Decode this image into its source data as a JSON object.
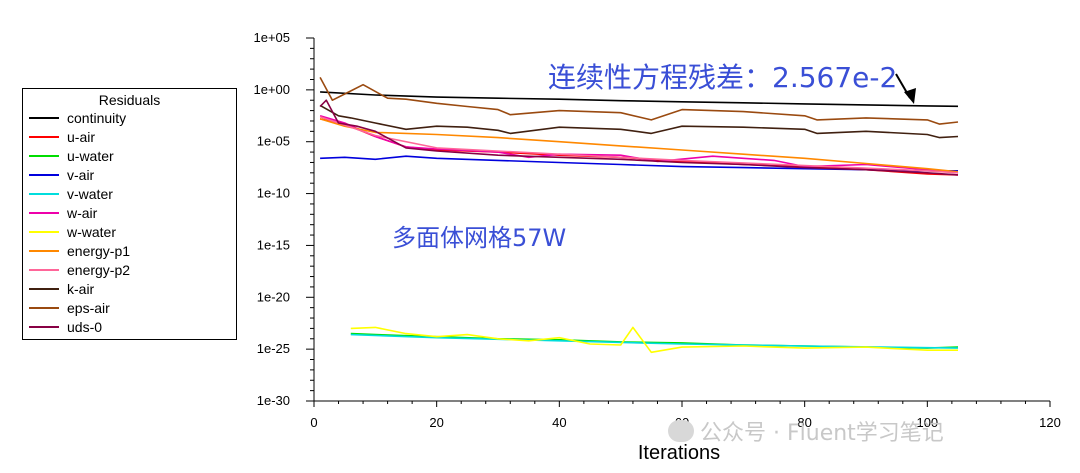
{
  "chart_data": {
    "type": "line",
    "title": "",
    "xlabel": "Iterations",
    "ylabel": "",
    "xlim": [
      0,
      120
    ],
    "xticks": [
      "0",
      "20",
      "40",
      "60",
      "80",
      "100",
      "120"
    ],
    "y_scale": "log",
    "ylim_exp": [
      -30,
      5
    ],
    "yticks": [
      "1e+05",
      "1e+00",
      "1e-05",
      "1e-10",
      "1e-15",
      "1e-20",
      "1e-25",
      "1e-30"
    ],
    "legend_title": "Residuals",
    "legend_position": "left",
    "annotations": {
      "continuity_residual": "连续性方程残差：2.567e-2",
      "mesh": "多面体网格57W"
    },
    "series": [
      {
        "name": "continuity",
        "color": "#000000",
        "points": [
          [
            1,
            -0.2
          ],
          [
            10,
            -0.5
          ],
          [
            20,
            -0.7
          ],
          [
            30,
            -0.8
          ],
          [
            40,
            -0.9
          ],
          [
            50,
            -1.05
          ],
          [
            60,
            -1.15
          ],
          [
            70,
            -1.25
          ],
          [
            80,
            -1.35
          ],
          [
            90,
            -1.45
          ],
          [
            100,
            -1.55
          ],
          [
            105,
            -1.59
          ]
        ]
      },
      {
        "name": "u-air",
        "color": "#ff0000",
        "points": [
          [
            1,
            -2.8
          ],
          [
            5,
            -3.3
          ],
          [
            10,
            -4.5
          ],
          [
            15,
            -5.5
          ],
          [
            20,
            -5.8
          ],
          [
            30,
            -6.0
          ],
          [
            40,
            -6.3
          ],
          [
            50,
            -6.5
          ],
          [
            60,
            -6.9
          ],
          [
            70,
            -7.2
          ],
          [
            80,
            -7.4
          ],
          [
            90,
            -7.7
          ],
          [
            100,
            -8.1
          ],
          [
            105,
            -8.2
          ]
        ]
      },
      {
        "name": "u-water",
        "color": "#00dd00",
        "points": [
          [
            6,
            -23.5
          ],
          [
            10,
            -23.6
          ],
          [
            20,
            -23.8
          ],
          [
            30,
            -24.0
          ],
          [
            40,
            -24.1
          ],
          [
            50,
            -24.3
          ],
          [
            60,
            -24.4
          ],
          [
            70,
            -24.6
          ],
          [
            80,
            -24.7
          ],
          [
            90,
            -24.8
          ],
          [
            100,
            -24.9
          ],
          [
            105,
            -24.8
          ]
        ]
      },
      {
        "name": "v-air",
        "color": "#0000dd",
        "points": [
          [
            1,
            -6.6
          ],
          [
            5,
            -6.5
          ],
          [
            10,
            -6.7
          ],
          [
            15,
            -6.4
          ],
          [
            20,
            -6.6
          ],
          [
            30,
            -6.8
          ],
          [
            40,
            -7.0
          ],
          [
            50,
            -7.2
          ],
          [
            60,
            -7.4
          ],
          [
            70,
            -7.5
          ],
          [
            80,
            -7.6
          ],
          [
            90,
            -7.7
          ],
          [
            100,
            -7.8
          ],
          [
            105,
            -7.8
          ]
        ]
      },
      {
        "name": "v-water",
        "color": "#00dddd",
        "points": [
          [
            6,
            -23.6
          ],
          [
            20,
            -23.9
          ],
          [
            40,
            -24.2
          ],
          [
            60,
            -24.5
          ],
          [
            80,
            -24.7
          ],
          [
            105,
            -24.9
          ]
        ]
      },
      {
        "name": "w-air",
        "color": "#ee00aa",
        "points": [
          [
            1,
            -2.5
          ],
          [
            5,
            -3.2
          ],
          [
            10,
            -4.5
          ],
          [
            15,
            -5.5
          ],
          [
            20,
            -5.7
          ],
          [
            30,
            -6.0
          ],
          [
            35,
            -6.5
          ],
          [
            40,
            -6.2
          ],
          [
            50,
            -6.3
          ],
          [
            56,
            -6.9
          ],
          [
            65,
            -6.4
          ],
          [
            75,
            -6.8
          ],
          [
            80,
            -7.4
          ],
          [
            90,
            -7.2
          ],
          [
            100,
            -7.7
          ],
          [
            105,
            -8.0
          ]
        ]
      },
      {
        "name": "w-water",
        "color": "#ffff00",
        "points": [
          [
            6,
            -23.0
          ],
          [
            10,
            -22.9
          ],
          [
            15,
            -23.5
          ],
          [
            20,
            -23.8
          ],
          [
            25,
            -23.6
          ],
          [
            30,
            -24.0
          ],
          [
            35,
            -24.2
          ],
          [
            40,
            -23.9
          ],
          [
            45,
            -24.5
          ],
          [
            50,
            -24.6
          ],
          [
            52,
            -22.9
          ],
          [
            55,
            -25.3
          ],
          [
            60,
            -24.8
          ],
          [
            70,
            -24.7
          ],
          [
            80,
            -24.9
          ],
          [
            90,
            -24.8
          ],
          [
            100,
            -25.1
          ],
          [
            105,
            -25.1
          ]
        ]
      },
      {
        "name": "energy-p1",
        "color": "#ff8800",
        "points": [
          [
            1,
            -2.8
          ],
          [
            5,
            -3.5
          ],
          [
            10,
            -4.1
          ],
          [
            20,
            -4.3
          ],
          [
            30,
            -4.6
          ],
          [
            40,
            -5.0
          ],
          [
            50,
            -5.4
          ],
          [
            60,
            -5.8
          ],
          [
            70,
            -6.2
          ],
          [
            80,
            -6.6
          ],
          [
            90,
            -7.1
          ],
          [
            100,
            -7.6
          ],
          [
            105,
            -7.9
          ]
        ]
      },
      {
        "name": "energy-p2",
        "color": "#ff6699",
        "points": [
          [
            1,
            -2.6
          ],
          [
            10,
            -4.4
          ],
          [
            20,
            -5.6
          ],
          [
            40,
            -6.2
          ],
          [
            60,
            -6.8
          ],
          [
            80,
            -7.3
          ],
          [
            100,
            -7.8
          ],
          [
            105,
            -8.0
          ]
        ]
      },
      {
        "name": "k-air",
        "color": "#402010",
        "points": [
          [
            1,
            -1.5
          ],
          [
            4,
            -2.5
          ],
          [
            6,
            -2.7
          ],
          [
            10,
            -3.2
          ],
          [
            15,
            -3.8
          ],
          [
            20,
            -3.5
          ],
          [
            25,
            -3.6
          ],
          [
            30,
            -3.9
          ],
          [
            32,
            -4.2
          ],
          [
            40,
            -3.6
          ],
          [
            50,
            -3.8
          ],
          [
            55,
            -4.2
          ],
          [
            60,
            -3.5
          ],
          [
            70,
            -3.6
          ],
          [
            80,
            -3.8
          ],
          [
            82,
            -4.2
          ],
          [
            90,
            -4.0
          ],
          [
            100,
            -4.3
          ],
          [
            102,
            -4.6
          ],
          [
            105,
            -4.5
          ]
        ]
      },
      {
        "name": "eps-air",
        "color": "#9a4a10",
        "points": [
          [
            1,
            1.2
          ],
          [
            3,
            -1.0
          ],
          [
            5,
            -0.4
          ],
          [
            8,
            0.5
          ],
          [
            12,
            -0.8
          ],
          [
            15,
            -0.9
          ],
          [
            20,
            -1.3
          ],
          [
            25,
            -1.6
          ],
          [
            30,
            -1.9
          ],
          [
            32,
            -2.4
          ],
          [
            40,
            -2.0
          ],
          [
            50,
            -2.2
          ],
          [
            55,
            -2.9
          ],
          [
            60,
            -1.9
          ],
          [
            70,
            -2.1
          ],
          [
            80,
            -2.5
          ],
          [
            82,
            -2.9
          ],
          [
            90,
            -2.7
          ],
          [
            100,
            -2.9
          ],
          [
            102,
            -3.3
          ],
          [
            105,
            -3.1
          ]
        ]
      },
      {
        "name": "uds-0",
        "color": "#880044",
        "points": [
          [
            1,
            -1.6
          ],
          [
            2,
            -1.0
          ],
          [
            4,
            -3.2
          ],
          [
            7,
            -3.5
          ],
          [
            10,
            -4.0
          ],
          [
            15,
            -5.6
          ],
          [
            20,
            -5.9
          ],
          [
            30,
            -6.3
          ],
          [
            40,
            -6.5
          ],
          [
            50,
            -6.7
          ],
          [
            60,
            -7.0
          ],
          [
            70,
            -7.2
          ],
          [
            80,
            -7.5
          ],
          [
            90,
            -7.7
          ],
          [
            100,
            -8.0
          ],
          [
            105,
            -8.2
          ]
        ]
      }
    ]
  },
  "watermark": "公众号 · Fluent学习笔记"
}
